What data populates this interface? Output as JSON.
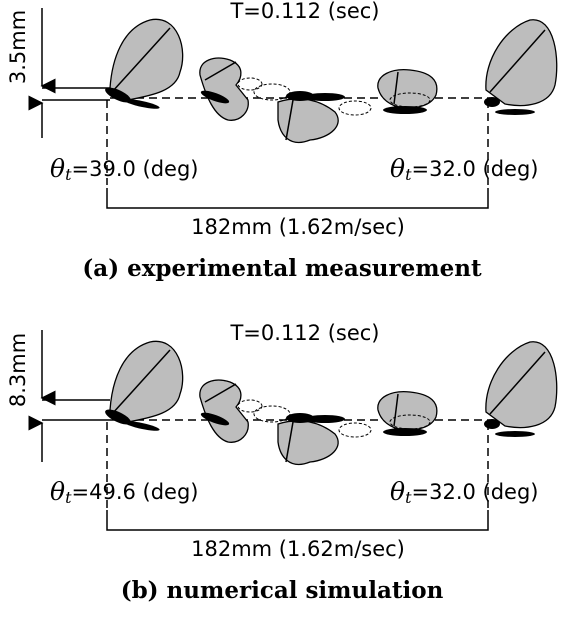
{
  "panels": [
    {
      "height": "3.5mm",
      "time": "T=0.112 (sec)",
      "theta_symbol": "θ",
      "theta_sub": "t",
      "theta_left": "=39.0 (deg)",
      "theta_right": "=32.0 (deg)",
      "distance": "182mm (1.62m/sec)",
      "caption": "(a) experimental measurement"
    },
    {
      "height": "8.3mm",
      "time": "T=0.112 (sec)",
      "theta_symbol": "θ",
      "theta_sub": "t",
      "theta_left": "=49.6 (deg)",
      "theta_right": "=32.0 (deg)",
      "distance": "182mm (1.62m/sec)",
      "caption": "(b) numerical simulation"
    }
  ]
}
